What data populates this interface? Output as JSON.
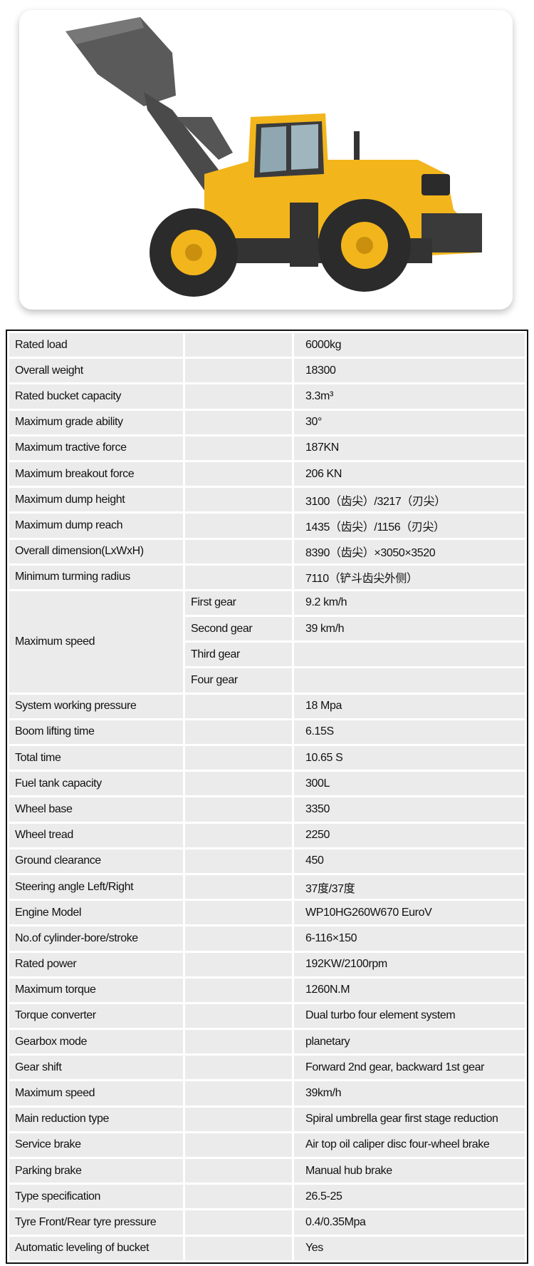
{
  "product_image": {
    "alt_icon": "wheel-loader-photo",
    "colors": {
      "body": "#f2b51c",
      "tyre": "#2b2b2b",
      "arm": "#4a4a4a"
    }
  },
  "specs": {
    "rows_before": [
      {
        "label": "Rated load",
        "value": "6000kg"
      },
      {
        "label": "Overall weight",
        "value": "18300"
      },
      {
        "label": "Rated bucket capacity",
        "value": "3.3m³"
      },
      {
        "label": "Maximum grade ability",
        "value": "30°"
      },
      {
        "label": "Maximum tractive force",
        "value": "187KN"
      },
      {
        "label": "Maximum breakout force",
        "value": "206 KN"
      },
      {
        "label": "Maximum dump height",
        "value": "3100（齿尖）/3217（刃尖）"
      },
      {
        "label": "Maximum dump reach",
        "value": "1435（齿尖）/1156（刃尖）"
      },
      {
        "label": "Overall dimension(LxWxH)",
        "value": "8390（齿尖）×3050×3520"
      },
      {
        "label": "Minimum turming radius",
        "value": "7110（铲斗齿尖外侧）"
      }
    ],
    "max_speed": {
      "label": "Maximum speed",
      "gears": [
        {
          "gear": "First gear",
          "value": "9.2 km/h"
        },
        {
          "gear": "Second gear",
          "value": "39 km/h"
        },
        {
          "gear": "Third gear",
          "value": ""
        },
        {
          "gear": "Four gear",
          "value": ""
        }
      ]
    },
    "rows_after": [
      {
        "label": "System working pressure",
        "value": "18 Mpa"
      },
      {
        "label": "Boom lifting time",
        "value": "6.15S"
      },
      {
        "label": "Total time",
        "value": "10.65 S"
      },
      {
        "label": "Fuel tank capacity",
        "value": "300L"
      },
      {
        "label": "Wheel base",
        "value": "3350"
      },
      {
        "label": "Wheel tread",
        "value": "2250"
      },
      {
        "label": "Ground clearance",
        "value": "450"
      },
      {
        "label": "Steering angle  Left/Right",
        "value": "37度/37度"
      },
      {
        "label": "Engine Model",
        "value": "WP10HG260W670  EuroV"
      },
      {
        "label": "No.of cylinder-bore/stroke",
        "value": "6-116×150"
      },
      {
        "label": "Rated power",
        "value": "192KW/2100rpm"
      },
      {
        "label": "Maximum torque",
        "value": "1260N.M"
      },
      {
        "label": "Torque converter",
        "value": "Dual turbo four element system"
      },
      {
        "label": "Gearbox mode",
        "value": "planetary"
      },
      {
        "label": "Gear shift",
        "value": "Forward 2nd gear, backward 1st gear"
      },
      {
        "label": "Maximum speed",
        "value": "39km/h"
      },
      {
        "label": "Main reduction type",
        "value": "Spiral umbrella gear first stage reduction"
      },
      {
        "label": "Service brake",
        "value": "Air top oil caliper disc four-wheel brake"
      },
      {
        "label": "Parking brake",
        "value": "Manual hub brake"
      },
      {
        "label": "Type specification",
        "value": "26.5-25"
      },
      {
        "label": "Tyre Front/Rear tyre pressure",
        "value": "0.4/0.35Mpa"
      },
      {
        "label": "Automatic leveling of bucket",
        "value": "Yes"
      }
    ]
  }
}
